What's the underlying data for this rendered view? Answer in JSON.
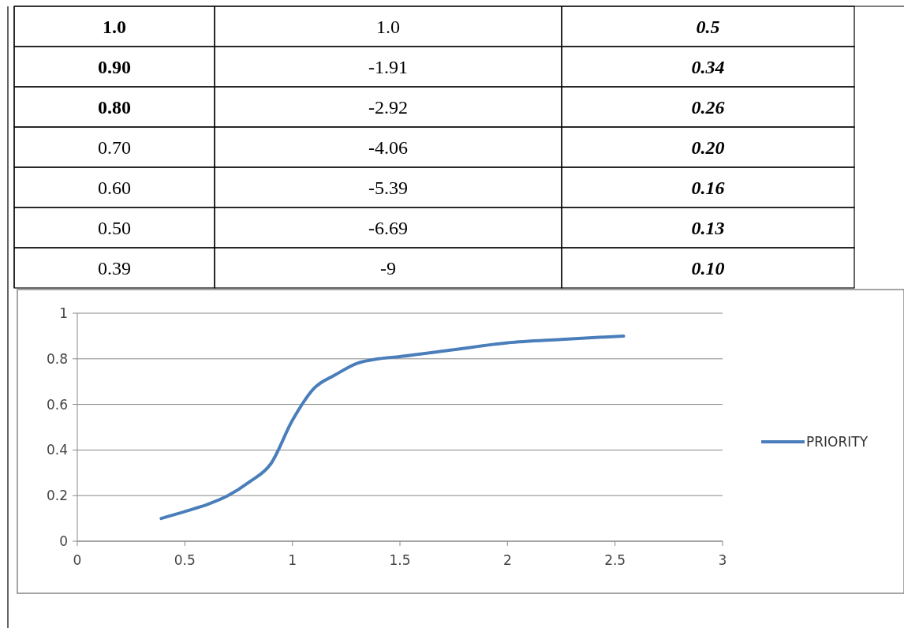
{
  "chart_data": [
    {
      "type": "other",
      "annotations": [
        "1.0",
        "1.0",
        "0.5",
        "0.90",
        "-1.91",
        "0.34",
        "0.80",
        "-2.92",
        "0.26",
        "0.70",
        "-4.06",
        "0.20",
        "0.60",
        "-5.39",
        "0.16",
        "0.50",
        "-6.69",
        "0.13",
        "0.39",
        "-9",
        "0.10"
      ]
    },
    {
      "type": "line",
      "x": [
        0.39,
        0.5,
        0.6,
        0.7,
        0.8,
        0.9,
        1.0,
        1.1,
        1.2,
        1.3,
        1.4,
        1.5,
        1.75,
        2.0,
        2.25,
        2.54
      ],
      "series": [
        {
          "name": "PRIORITY",
          "color": "#4a7ebb",
          "values": [
            0.1,
            0.13,
            0.16,
            0.2,
            0.26,
            0.34,
            0.53,
            0.67,
            0.73,
            0.78,
            0.8,
            0.81,
            0.84,
            0.87,
            0.885,
            0.9
          ]
        }
      ],
      "xlim": [
        0,
        3
      ],
      "xticks": [
        0,
        0.5,
        1,
        1.5,
        2,
        2.5,
        3
      ],
      "ylim": [
        0,
        1
      ],
      "yticks": [
        0,
        0.2,
        0.4,
        0.6,
        0.8,
        1
      ],
      "grid": "y",
      "legend": "right",
      "marker": "none",
      "line_style": "solid"
    }
  ]
}
